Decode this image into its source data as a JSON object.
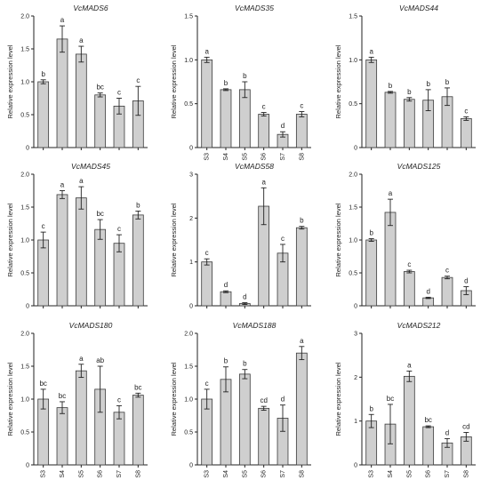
{
  "colors": {
    "bar_fill": "#cfcfcf",
    "bar_stroke": "#3a3a3a",
    "axis": "#222222",
    "error": "#222222"
  },
  "chart_data": [
    {
      "type": "bar",
      "title": "VcMADS6",
      "ylabel": "Relative expression level",
      "xlabel": "",
      "ylim": [
        0,
        2.0
      ],
      "yticks": [
        0,
        0.5,
        1.0,
        1.5,
        2.0
      ],
      "ytick_labels": [
        "0",
        "0.5",
        "1.0",
        "1.5",
        "2.0"
      ],
      "categories": [
        "S3",
        "S4",
        "S5",
        "S6",
        "S7",
        "S8"
      ],
      "show_xticklabels": false,
      "values": [
        1.0,
        1.65,
        1.42,
        0.8,
        0.63,
        0.71
      ],
      "errors": [
        0.03,
        0.2,
        0.12,
        0.03,
        0.12,
        0.22
      ],
      "labels": [
        "b",
        "a",
        "a",
        "bc",
        "c",
        "c"
      ]
    },
    {
      "type": "bar",
      "title": "VcMADS35",
      "ylabel": "Relative expression level",
      "xlabel": "",
      "ylim": [
        0,
        1.5
      ],
      "yticks": [
        0,
        0.5,
        1.0,
        1.5
      ],
      "ytick_labels": [
        "0",
        "0.5",
        "1.0",
        "1.5"
      ],
      "categories": [
        "S3",
        "S4",
        "S5",
        "S6",
        "S7",
        "S8"
      ],
      "show_xticklabels": true,
      "values": [
        1.0,
        0.66,
        0.66,
        0.38,
        0.15,
        0.38
      ],
      "errors": [
        0.03,
        0.01,
        0.09,
        0.02,
        0.03,
        0.03
      ],
      "labels": [
        "a",
        "b",
        "b",
        "c",
        "d",
        "c"
      ]
    },
    {
      "type": "bar",
      "title": "VcMADS44",
      "ylabel": "Relative expression level",
      "xlabel": "",
      "ylim": [
        0,
        1.5
      ],
      "yticks": [
        0,
        0.5,
        1.0,
        1.5
      ],
      "ytick_labels": [
        "0",
        "0.5",
        "1.0",
        "1.5"
      ],
      "categories": [
        "S3",
        "S4",
        "S5",
        "S6",
        "S7",
        "S8"
      ],
      "show_xticklabels": false,
      "values": [
        1.0,
        0.63,
        0.55,
        0.54,
        0.58,
        0.33
      ],
      "errors": [
        0.03,
        0.01,
        0.02,
        0.12,
        0.1,
        0.02
      ],
      "labels": [
        "a",
        "b",
        "b",
        "b",
        "b",
        "c"
      ]
    },
    {
      "type": "bar",
      "title": "VcMADS45",
      "ylabel": "Relative expression level",
      "xlabel": "",
      "ylim": [
        0,
        2.0
      ],
      "yticks": [
        0,
        0.5,
        1.0,
        1.5,
        2.0
      ],
      "ytick_labels": [
        "0",
        "0.5",
        "1.0",
        "1.5",
        "2.0"
      ],
      "categories": [
        "S3",
        "S4",
        "S5",
        "S6",
        "S7",
        "S8"
      ],
      "show_xticklabels": false,
      "values": [
        1.0,
        1.69,
        1.64,
        1.16,
        0.95,
        1.38
      ],
      "errors": [
        0.12,
        0.06,
        0.17,
        0.15,
        0.13,
        0.06
      ],
      "labels": [
        "c",
        "a",
        "a",
        "bc",
        "c",
        "b"
      ]
    },
    {
      "type": "bar",
      "title": "VcMADS58",
      "ylabel": "Relative expression level",
      "xlabel": "",
      "ylim": [
        0,
        3
      ],
      "yticks": [
        0,
        1,
        2,
        3
      ],
      "ytick_labels": [
        "0",
        "1",
        "2",
        "3"
      ],
      "categories": [
        "S3",
        "S4",
        "S5",
        "S6",
        "S7",
        "S8"
      ],
      "show_xticklabels": false,
      "values": [
        1.0,
        0.32,
        0.05,
        2.27,
        1.2,
        1.78
      ],
      "errors": [
        0.07,
        0.02,
        0.02,
        0.42,
        0.2,
        0.03
      ],
      "labels": [
        "c",
        "d",
        "d",
        "a",
        "c",
        "b"
      ]
    },
    {
      "type": "bar",
      "title": "VcMADS125",
      "ylabel": "Relative expression level",
      "xlabel": "",
      "ylim": [
        0,
        2.0
      ],
      "yticks": [
        0,
        0.5,
        1.0,
        1.5,
        2.0
      ],
      "ytick_labels": [
        "0",
        "0.5",
        "1.0",
        "1.5",
        "2.0"
      ],
      "categories": [
        "S3",
        "S4",
        "S5",
        "S6",
        "S7",
        "S8"
      ],
      "show_xticklabels": false,
      "values": [
        1.0,
        1.42,
        0.52,
        0.12,
        0.43,
        0.23
      ],
      "errors": [
        0.02,
        0.2,
        0.02,
        0.01,
        0.02,
        0.06
      ],
      "labels": [
        "b",
        "a",
        "c",
        "d",
        "c",
        "d"
      ]
    },
    {
      "type": "bar",
      "title": "VcMADS180",
      "ylabel": "Relative expression level",
      "xlabel": "",
      "ylim": [
        0,
        2.0
      ],
      "yticks": [
        0,
        0.5,
        1.0,
        1.5,
        2.0
      ],
      "ytick_labels": [
        "0",
        "0.5",
        "1.0",
        "1.5",
        "2.0"
      ],
      "categories": [
        "S3",
        "S4",
        "S5",
        "S6",
        "S7",
        "S8"
      ],
      "show_xticklabels": true,
      "values": [
        1.0,
        0.87,
        1.43,
        1.15,
        0.8,
        1.06
      ],
      "errors": [
        0.15,
        0.09,
        0.1,
        0.35,
        0.1,
        0.03
      ],
      "labels": [
        "bc",
        "bc",
        "a",
        "ab",
        "c",
        "bc"
      ]
    },
    {
      "type": "bar",
      "title": "VcMADS188",
      "ylabel": "Relative expression level",
      "xlabel": "Stages",
      "ylim": [
        0,
        2.0
      ],
      "yticks": [
        0,
        0.5,
        1.0,
        1.5,
        2.0
      ],
      "ytick_labels": [
        "0",
        "0.5",
        "1.0",
        "1.5",
        "2.0"
      ],
      "categories": [
        "S3",
        "S4",
        "S5",
        "S6",
        "S7",
        "S8"
      ],
      "show_xticklabels": true,
      "values": [
        1.0,
        1.3,
        1.38,
        0.86,
        0.71,
        1.7
      ],
      "errors": [
        0.15,
        0.19,
        0.07,
        0.03,
        0.2,
        0.1
      ],
      "labels": [
        "c",
        "b",
        "b",
        "cd",
        "d",
        "a"
      ]
    },
    {
      "type": "bar",
      "title": "VcMADS212",
      "ylabel": "Relative expression level",
      "xlabel": "",
      "ylim": [
        0,
        3
      ],
      "yticks": [
        0,
        1,
        2,
        3
      ],
      "ytick_labels": [
        "0",
        "1",
        "2",
        "3"
      ],
      "categories": [
        "S3",
        "S4",
        "S5",
        "S6",
        "S7",
        "S8"
      ],
      "show_xticklabels": true,
      "values": [
        1.0,
        0.93,
        2.02,
        0.87,
        0.5,
        0.64
      ],
      "errors": [
        0.15,
        0.45,
        0.12,
        0.02,
        0.1,
        0.1
      ],
      "labels": [
        "b",
        "bc",
        "a",
        "bc",
        "d",
        "cd"
      ]
    }
  ]
}
